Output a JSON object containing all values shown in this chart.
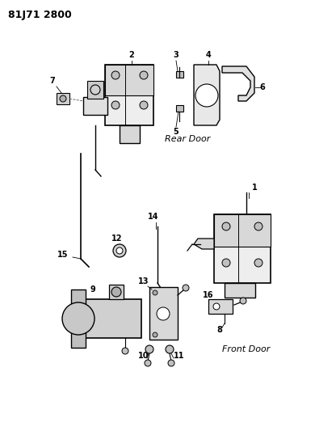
{
  "title": "81J71 2800",
  "title_fontsize": 9,
  "background_color": "#ffffff",
  "text_color": "#000000",
  "line_color": "#000000",
  "labels": {
    "rear_door": "Rear Door",
    "front_door": "Front Door"
  },
  "figsize": [
    3.9,
    5.33
  ],
  "dpi": 100
}
